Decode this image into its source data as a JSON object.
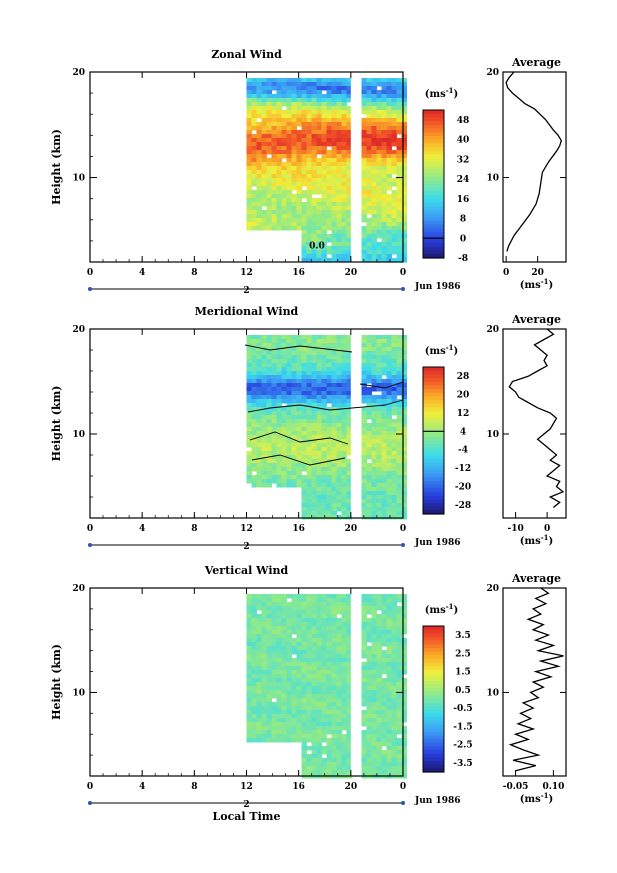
{
  "chart_data": [
    {
      "type": "heatmap",
      "title": "Zonal Wind",
      "ylabel": "Height (km)",
      "ylim": [
        2,
        20
      ],
      "yticks": [
        "10",
        "20"
      ],
      "xticks": [
        "0",
        "4",
        "8",
        "12",
        "16",
        "20",
        "0"
      ],
      "xlim_hours": [
        0,
        24
      ],
      "day_label": "2",
      "date_label": "Jun 1986",
      "colorbar": {
        "unit": "(ms",
        "unit_exp": "-1",
        "unit_close": ")",
        "ticks": [
          "48",
          "40",
          "32",
          "24",
          "16",
          "8",
          "0",
          "-8"
        ],
        "min": -8,
        "max": 52
      },
      "data_start_hour": 12,
      "data_gap_hours": [
        20,
        20.5
      ],
      "contour_label": "0.0",
      "average": {
        "title": "Average",
        "xticks": [
          "0",
          "20"
        ],
        "xlim": [
          -2,
          38
        ],
        "xunit": "(ms",
        "xunit_exp": "-1",
        "xunit_close": ")",
        "yticks": [
          "10",
          "20"
        ],
        "profile": [
          [
            3.0,
            0.5
          ],
          [
            3.5,
            1.5
          ],
          [
            4.5,
            5
          ],
          [
            5.5,
            10
          ],
          [
            6.5,
            15
          ],
          [
            7.5,
            19
          ],
          [
            8.5,
            21
          ],
          [
            9.5,
            22
          ],
          [
            10.5,
            23
          ],
          [
            11.5,
            27
          ],
          [
            12.5,
            32
          ],
          [
            13.0,
            34
          ],
          [
            13.5,
            35
          ],
          [
            14.0,
            33
          ],
          [
            14.5,
            30
          ],
          [
            15.5,
            25
          ],
          [
            16.5,
            18
          ],
          [
            17.0,
            12
          ],
          [
            17.5,
            8
          ],
          [
            18.0,
            4
          ],
          [
            18.5,
            1
          ],
          [
            19.0,
            0
          ],
          [
            19.5,
            2
          ],
          [
            20.0,
            5
          ]
        ]
      }
    },
    {
      "type": "heatmap",
      "title": "Meridional Wind",
      "ylabel": "Height (km)",
      "ylim": [
        2,
        20
      ],
      "yticks": [
        "10",
        "20"
      ],
      "xticks": [
        "0",
        "4",
        "8",
        "12",
        "16",
        "20",
        "0"
      ],
      "xlim_hours": [
        0,
        24
      ],
      "day_label": "2",
      "date_label": "Jun 1986",
      "colorbar": {
        "unit": "(ms",
        "unit_exp": "-1",
        "unit_close": ")",
        "ticks": [
          "28",
          "20",
          "12",
          "4",
          "-4",
          "-12",
          "-20",
          "-28"
        ],
        "min": -32,
        "max": 32
      },
      "data_start_hour": 12,
      "data_gap_hours": [
        20,
        20.5
      ],
      "average": {
        "title": "Average",
        "xticks": [
          "-10",
          "0"
        ],
        "xlim": [
          -14,
          6
        ],
        "xunit": "(ms",
        "xunit_exp": "-1",
        "xunit_close": ")",
        "yticks": [
          "10",
          "20"
        ],
        "profile": [
          [
            3.0,
            2
          ],
          [
            3.5,
            4
          ],
          [
            4.0,
            1
          ],
          [
            4.5,
            5
          ],
          [
            5.0,
            3
          ],
          [
            5.5,
            4
          ],
          [
            6.0,
            0
          ],
          [
            6.5,
            2
          ],
          [
            7.0,
            4
          ],
          [
            7.5,
            1
          ],
          [
            8.0,
            3
          ],
          [
            8.5,
            1
          ],
          [
            9.0,
            -1
          ],
          [
            9.5,
            -3
          ],
          [
            10.0,
            -1
          ],
          [
            10.5,
            1
          ],
          [
            11.0,
            2
          ],
          [
            11.5,
            3
          ],
          [
            12.0,
            1
          ],
          [
            12.5,
            -3
          ],
          [
            13.0,
            -6
          ],
          [
            13.5,
            -9
          ],
          [
            14.0,
            -10
          ],
          [
            14.5,
            -12
          ],
          [
            15.0,
            -11
          ],
          [
            15.5,
            -6
          ],
          [
            16.0,
            -3
          ],
          [
            16.5,
            0
          ],
          [
            17.0,
            -1
          ],
          [
            17.5,
            0
          ],
          [
            18.0,
            -2
          ],
          [
            18.5,
            -4
          ],
          [
            19.0,
            -1
          ],
          [
            19.5,
            2
          ],
          [
            20.0,
            0
          ]
        ]
      }
    },
    {
      "type": "heatmap",
      "title": "Vertical Wind",
      "ylabel": "Height (km)",
      "xlabel": "Local Time",
      "ylim": [
        2,
        20
      ],
      "yticks": [
        "10",
        "20"
      ],
      "xticks": [
        "0",
        "4",
        "8",
        "12",
        "16",
        "20",
        "0"
      ],
      "xlim_hours": [
        0,
        24
      ],
      "day_label": "2",
      "date_label": "Jun 1986",
      "colorbar": {
        "unit": "(ms",
        "unit_exp": "-1",
        "unit_close": ")",
        "ticks": [
          "3.5",
          "2.5",
          "1.5",
          "0.5",
          "-0.5",
          "-1.5",
          "-2.5",
          "-3.5"
        ],
        "min": -4,
        "max": 4
      },
      "data_start_hour": 12,
      "data_gap_hours": [
        20,
        20.5
      ],
      "average": {
        "title": "Average",
        "xticks": [
          "-0.05",
          "0.10"
        ],
        "xlim": [
          -0.1,
          0.15
        ],
        "xunit": "(ms",
        "xunit_exp": "-1",
        "xunit_close": ")",
        "yticks": [
          "10",
          "20"
        ],
        "profile": [
          [
            2.5,
            -0.05
          ],
          [
            3.0,
            0.03
          ],
          [
            3.5,
            -0.06
          ],
          [
            4.0,
            0.04
          ],
          [
            4.5,
            -0.02
          ],
          [
            5.0,
            -0.07
          ],
          [
            5.5,
            0.0
          ],
          [
            6.0,
            -0.05
          ],
          [
            6.5,
            0.02
          ],
          [
            7.0,
            -0.04
          ],
          [
            7.5,
            0.01
          ],
          [
            8.0,
            -0.03
          ],
          [
            8.5,
            0.02
          ],
          [
            9.0,
            -0.02
          ],
          [
            9.5,
            0.04
          ],
          [
            10.0,
            0.01
          ],
          [
            10.5,
            0.06
          ],
          [
            11.0,
            0.02
          ],
          [
            11.5,
            0.09
          ],
          [
            12.0,
            0.03
          ],
          [
            12.5,
            0.12
          ],
          [
            13.0,
            0.05
          ],
          [
            13.5,
            0.14
          ],
          [
            14.0,
            0.04
          ],
          [
            14.5,
            0.1
          ],
          [
            15.0,
            0.03
          ],
          [
            15.5,
            0.08
          ],
          [
            16.0,
            0.02
          ],
          [
            16.5,
            0.06
          ],
          [
            17.0,
            0.0
          ],
          [
            17.5,
            0.05
          ],
          [
            18.0,
            0.02
          ],
          [
            18.5,
            0.07
          ],
          [
            19.0,
            0.03
          ],
          [
            19.5,
            0.08
          ],
          [
            20.0,
            0.05
          ]
        ]
      }
    }
  ]
}
